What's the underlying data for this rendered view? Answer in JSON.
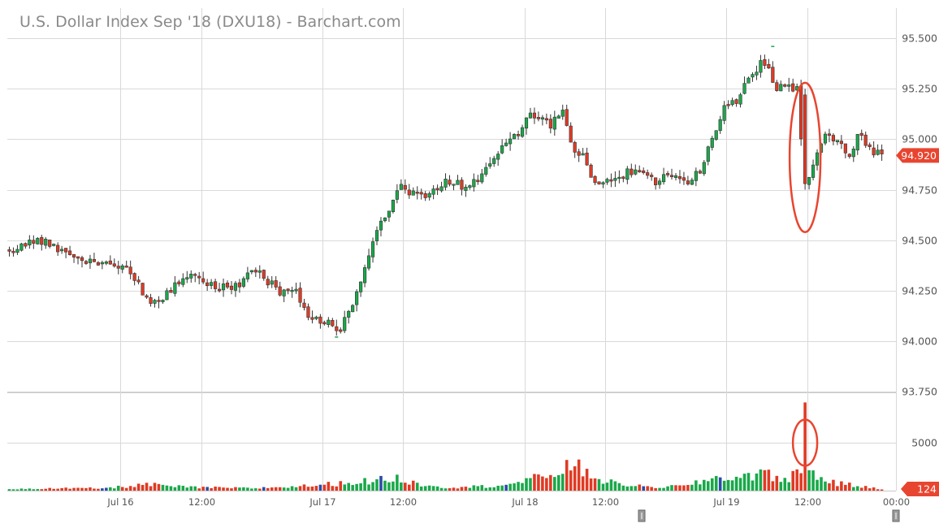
{
  "chart_data": {
    "type": "candlestick",
    "title": "U.S. Dollar Index Sep '18 (DXU18) - Barchart.com",
    "last_price_label": "94.920",
    "volume_last_label": "124",
    "price_axis": {
      "ylim": [
        93.75,
        95.65
      ],
      "ticks": [
        "95.500",
        "95.250",
        "95.000",
        "94.750",
        "94.500",
        "94.250",
        "94.000",
        "93.750"
      ],
      "tick_values": [
        95.5,
        95.25,
        95.0,
        94.75,
        94.5,
        94.25,
        94.0,
        93.75
      ]
    },
    "volume_axis": {
      "ylim": [
        0,
        10000
      ],
      "ticks": [
        "5000"
      ],
      "tick_values": [
        5000
      ]
    },
    "x_axis": {
      "ticks": [
        "Jul 16",
        "12:00",
        "Jul 17",
        "12:00",
        "Jul 18",
        "12:00",
        "Jul 19",
        "12:00",
        "00:00"
      ],
      "tick_positions": [
        28,
        48,
        78,
        98,
        128,
        148,
        178,
        198,
        220
      ]
    },
    "grid": true,
    "colors": {
      "up": "#1aa84a",
      "down": "#e03a24",
      "neutral": "#2b4ba8",
      "grid": "#d9d9d9",
      "annotation": "#e84530",
      "last_tag": "#e84530"
    },
    "annotations": [
      {
        "type": "ellipse",
        "panel": "price",
        "bar": 197,
        "y_center": 94.91,
        "y_half_range": 0.37
      },
      {
        "type": "ellipse",
        "panel": "volume",
        "bar": 197,
        "y_center": 5000,
        "y_half_range": 2400
      }
    ],
    "price_waypoints": [
      [
        0,
        94.45
      ],
      [
        7,
        94.5
      ],
      [
        13,
        94.46
      ],
      [
        18,
        94.42
      ],
      [
        22,
        94.37
      ],
      [
        27,
        94.38
      ],
      [
        31,
        94.31
      ],
      [
        34,
        94.2
      ],
      [
        37,
        94.18
      ],
      [
        41,
        94.29
      ],
      [
        46,
        94.32
      ],
      [
        50,
        94.28
      ],
      [
        56,
        94.27
      ],
      [
        61,
        94.35
      ],
      [
        64,
        94.3
      ],
      [
        67,
        94.22
      ],
      [
        71,
        94.26
      ],
      [
        74,
        94.12
      ],
      [
        79,
        94.1
      ],
      [
        82,
        94.06
      ],
      [
        85,
        94.2
      ],
      [
        88,
        94.35
      ],
      [
        91,
        94.55
      ],
      [
        94,
        94.62
      ],
      [
        97,
        94.8
      ],
      [
        100,
        94.72
      ],
      [
        104,
        94.73
      ],
      [
        108,
        94.8
      ],
      [
        113,
        94.77
      ],
      [
        117,
        94.83
      ],
      [
        121,
        94.95
      ],
      [
        125,
        95.0
      ],
      [
        129,
        95.12
      ],
      [
        134,
        95.07
      ],
      [
        137,
        95.15
      ],
      [
        139,
        94.98
      ],
      [
        142,
        94.9
      ],
      [
        145,
        94.78
      ],
      [
        150,
        94.8
      ],
      [
        155,
        94.85
      ],
      [
        160,
        94.78
      ],
      [
        164,
        94.84
      ],
      [
        168,
        94.8
      ],
      [
        171,
        94.85
      ],
      [
        174,
        95.0
      ],
      [
        177,
        95.15
      ],
      [
        180,
        95.2
      ],
      [
        183,
        95.28
      ],
      [
        186,
        95.38
      ],
      [
        188,
        95.35
      ],
      [
        190,
        95.25
      ],
      [
        193,
        95.25
      ],
      [
        195,
        95.24
      ],
      [
        197,
        94.78
      ],
      [
        198,
        94.82
      ],
      [
        200,
        94.92
      ],
      [
        202,
        95.02
      ],
      [
        205,
        94.98
      ],
      [
        208,
        94.92
      ],
      [
        210,
        95.02
      ],
      [
        213,
        94.95
      ],
      [
        216,
        94.92
      ]
    ],
    "volume_waypoints": [
      [
        0,
        200
      ],
      [
        24,
        250
      ],
      [
        34,
        650
      ],
      [
        44,
        350
      ],
      [
        60,
        250
      ],
      [
        72,
        450
      ],
      [
        80,
        700
      ],
      [
        92,
        1100
      ],
      [
        96,
        1300
      ],
      [
        100,
        800
      ],
      [
        108,
        350
      ],
      [
        118,
        450
      ],
      [
        126,
        800
      ],
      [
        134,
        1700
      ],
      [
        137,
        2300
      ],
      [
        140,
        2600
      ],
      [
        143,
        1800
      ],
      [
        148,
        900
      ],
      [
        158,
        350
      ],
      [
        168,
        500
      ],
      [
        174,
        1300
      ],
      [
        180,
        1400
      ],
      [
        186,
        1800
      ],
      [
        192,
        1200
      ],
      [
        196,
        2000
      ],
      [
        197,
        9200
      ],
      [
        198,
        2700
      ],
      [
        200,
        1400
      ],
      [
        205,
        750
      ],
      [
        210,
        500
      ],
      [
        216,
        120
      ]
    ],
    "neutral_volume_bars": [
      23,
      24,
      49,
      63,
      77,
      92,
      123,
      157,
      176
    ],
    "price_low_markers": [
      {
        "bar": 81,
        "value": 94.02
      }
    ],
    "price_high_markers": [
      {
        "bar": 189,
        "value": 95.46
      }
    ]
  }
}
